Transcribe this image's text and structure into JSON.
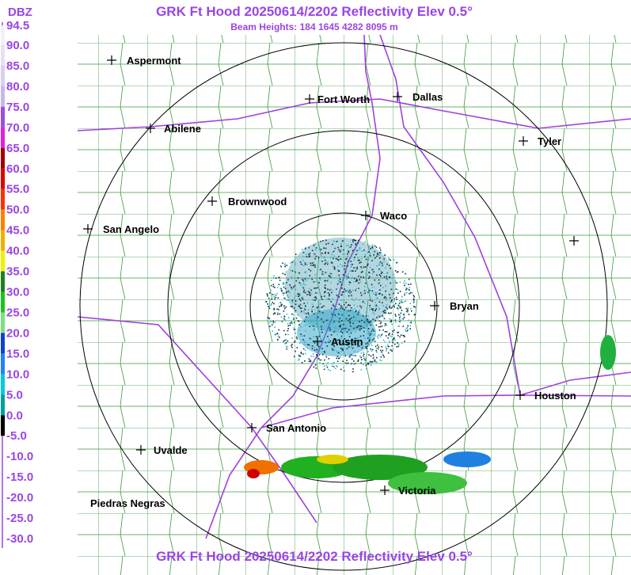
{
  "title": "GRK Ft Hood 20250614/2202 Reflectivity Elev 0.5°",
  "subtitle": "Beam Heights: 184 1645 4282 8095 m",
  "footer_title": "GRK Ft Hood 20250614/2202 Reflectivity Elev 0.5°",
  "legend": {
    "unit": "DBZ",
    "labels": [
      "94.5",
      "90.0",
      "85.0",
      "80.0",
      "75.0",
      "70.0",
      "65.0",
      "60.0",
      "55.0",
      "50.0",
      "45.0",
      "40.0",
      "35.0",
      "30.0",
      "25.0",
      "20.0",
      "15.0",
      "10.0",
      "5.0",
      "0.0",
      "-5.0",
      "-10.0",
      "-15.0",
      "-20.0",
      "-25.0",
      "-30.0"
    ]
  },
  "cities": [
    "Aspermont",
    "Fort Worth",
    "Dallas",
    "Abilene",
    "Tyler",
    "Brownwood",
    "Waco",
    "San Angelo",
    "Bryan",
    "Austin",
    "Houston",
    "San Antonio",
    "Uvalde",
    "Victoria",
    "Piedras Negras"
  ]
}
